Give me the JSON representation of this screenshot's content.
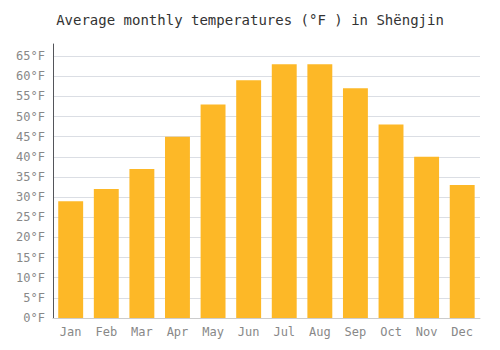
{
  "chart_data": {
    "type": "bar",
    "title": "Average monthly temperatures (°F ) in Shëngjin",
    "categories": [
      "Jan",
      "Feb",
      "Mar",
      "Apr",
      "May",
      "Jun",
      "Jul",
      "Aug",
      "Sep",
      "Oct",
      "Nov",
      "Dec"
    ],
    "values": [
      29,
      32,
      37,
      45,
      53,
      59,
      63,
      63,
      57,
      48,
      40,
      33
    ],
    "color": "#FDB827",
    "ylim": [
      0,
      68
    ],
    "yticks": [
      {
        "value": 0,
        "label": "0°F"
      },
      {
        "value": 5,
        "label": "5°F"
      },
      {
        "value": 10,
        "label": "10°F"
      },
      {
        "value": 15,
        "label": "15°F"
      },
      {
        "value": 20,
        "label": "20°F"
      },
      {
        "value": 25,
        "label": "25°F"
      },
      {
        "value": 30,
        "label": "30°F"
      },
      {
        "value": 35,
        "label": "35°F"
      },
      {
        "value": 40,
        "label": "40°F"
      },
      {
        "value": 45,
        "label": "45°F"
      },
      {
        "value": 50,
        "label": "50°F"
      },
      {
        "value": 55,
        "label": "55°F"
      },
      {
        "value": 60,
        "label": "60°F"
      },
      {
        "value": 65,
        "label": "65°F"
      }
    ],
    "grid": true
  }
}
